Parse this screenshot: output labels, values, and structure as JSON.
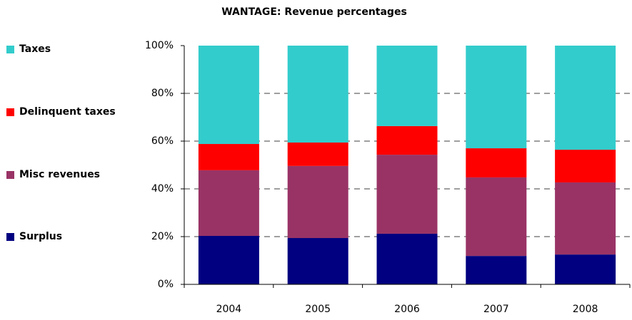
{
  "chart_data": {
    "type": "stacked_bar",
    "title": "WANTAGE: Revenue percentages",
    "categories": [
      "2004",
      "2005",
      "2006",
      "2007",
      "2008"
    ],
    "series": [
      {
        "name": "Surplus",
        "color": "#000080",
        "values": [
          20.3,
          19.4,
          21.2,
          11.9,
          12.5
        ]
      },
      {
        "name": "Misc revenues",
        "color": "#993366",
        "values": [
          27.5,
          30.2,
          33.1,
          32.9,
          30.2
        ]
      },
      {
        "name": "Delinquent taxes",
        "color": "#ff0000",
        "values": [
          11.0,
          9.8,
          12.0,
          12.2,
          13.7
        ]
      },
      {
        "name": "Taxes",
        "color": "#33cccc",
        "values": [
          41.2,
          40.6,
          33.7,
          43.0,
          43.6
        ]
      }
    ],
    "ylim": [
      0,
      100
    ],
    "yticks": [
      {
        "value": 0,
        "label": "0%"
      },
      {
        "value": 20,
        "label": "20%"
      },
      {
        "value": 40,
        "label": "40%"
      },
      {
        "value": 60,
        "label": "60%"
      },
      {
        "value": 80,
        "label": "80%"
      },
      {
        "value": 100,
        "label": "100%"
      }
    ],
    "grid": true,
    "legend": "left"
  }
}
